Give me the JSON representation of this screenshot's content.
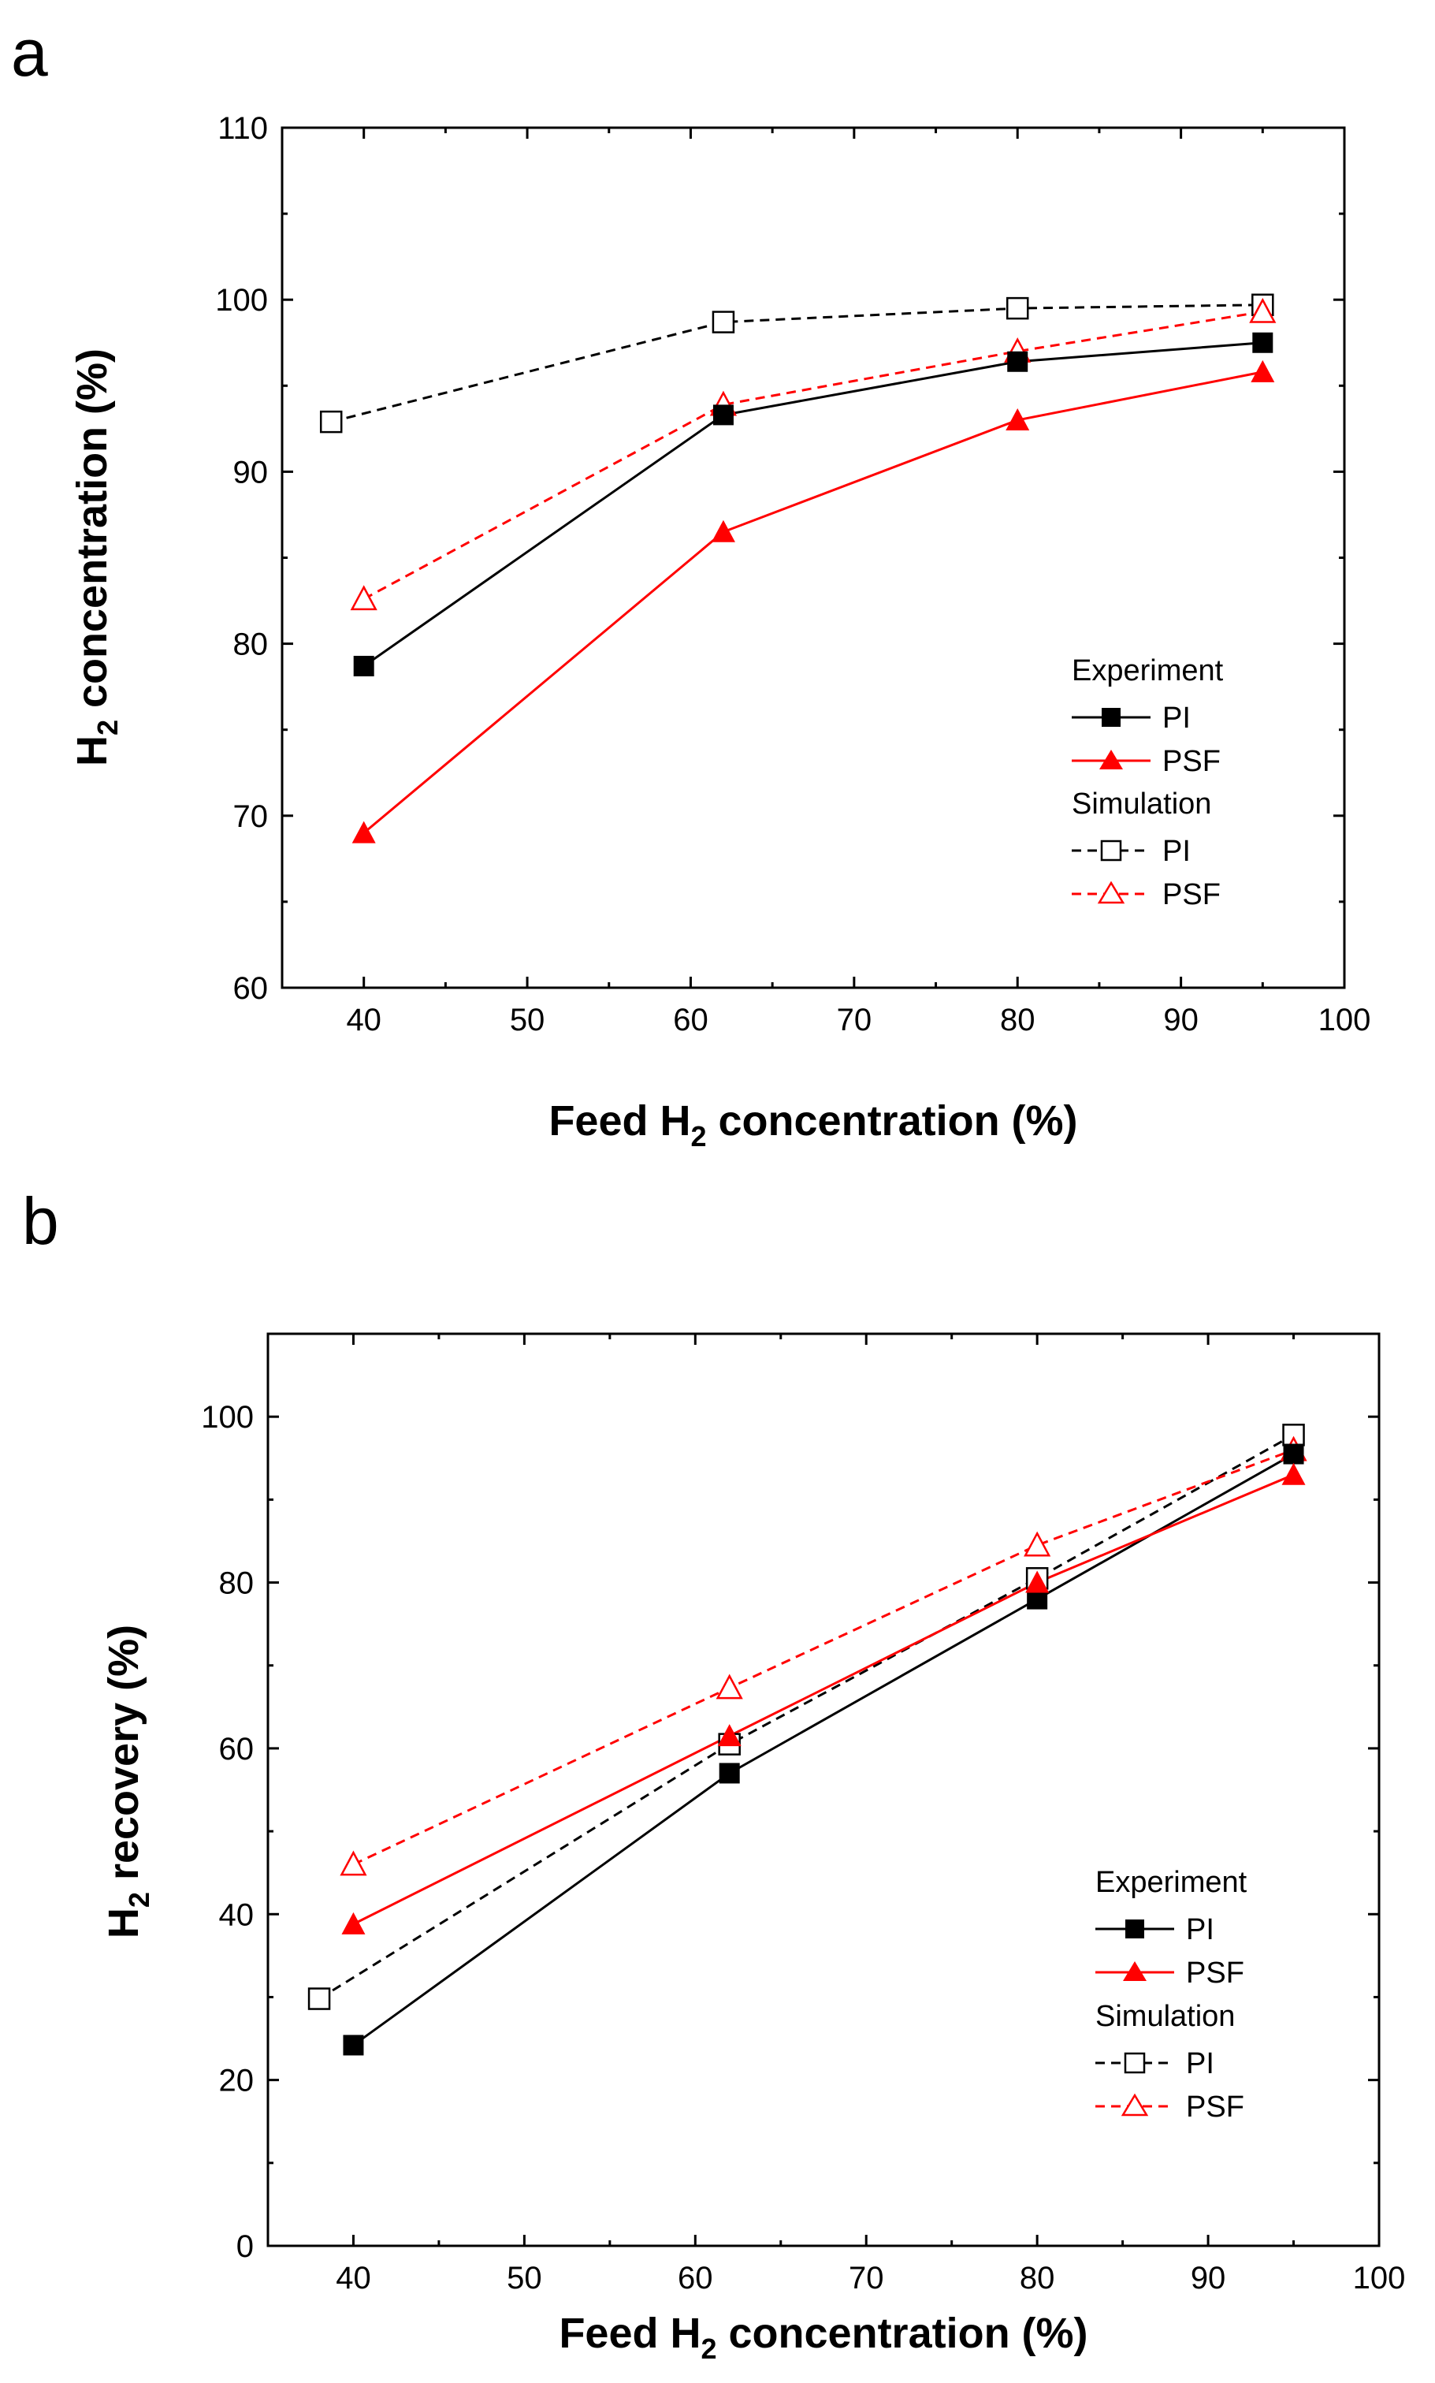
{
  "colors": {
    "pi": "#000000",
    "psf": "#ff0000"
  },
  "chart_data": [
    {
      "panel_label": "a",
      "type": "line",
      "xlabel_parts": [
        "Feed H",
        "2",
        " concentration (%)"
      ],
      "ylabel_parts": [
        "H",
        "2",
        " concentration (%)"
      ],
      "xlim": [
        35,
        100
      ],
      "ylim": [
        60,
        110
      ],
      "xticks": [
        40,
        50,
        60,
        70,
        80,
        90,
        100
      ],
      "yticks": [
        60,
        70,
        80,
        90,
        100,
        110
      ],
      "grid": false,
      "legend_position": "lower-right",
      "legend": {
        "experiment_header": "Experiment",
        "simulation_header": "Simulation",
        "experiment_pi": "PI",
        "experiment_psf": "PSF",
        "simulation_pi": "PI",
        "simulation_psf": "PSF"
      },
      "series": [
        {
          "name": "Experiment PI",
          "group": "Experiment",
          "label": "PI",
          "color": "#000000",
          "marker": "square-filled",
          "dashed": false,
          "x": [
            40,
            62,
            80,
            95
          ],
          "y": [
            78.7,
            93.3,
            96.4,
            97.5
          ]
        },
        {
          "name": "Experiment PSF",
          "group": "Experiment",
          "label": "PSF",
          "color": "#ff0000",
          "marker": "triangle-filled",
          "dashed": false,
          "x": [
            40,
            62,
            80,
            95
          ],
          "y": [
            69.0,
            86.5,
            93.0,
            95.8
          ]
        },
        {
          "name": "Simulation PI",
          "group": "Simulation",
          "label": "PI",
          "color": "#000000",
          "marker": "square-open",
          "dashed": true,
          "x": [
            38,
            62,
            80,
            95
          ],
          "y": [
            92.9,
            98.7,
            99.5,
            99.7
          ]
        },
        {
          "name": "Simulation PSF",
          "group": "Simulation",
          "label": "PSF",
          "color": "#ff0000",
          "marker": "triangle-open",
          "dashed": true,
          "x": [
            40,
            62,
            80,
            95
          ],
          "y": [
            82.6,
            93.9,
            97.0,
            99.3
          ]
        }
      ]
    },
    {
      "panel_label": "b",
      "type": "line",
      "xlabel_parts": [
        "Feed H",
        "2",
        " concentration (%)"
      ],
      "ylabel_parts": [
        "H",
        "2",
        " recovery (%)"
      ],
      "xlim": [
        35,
        100
      ],
      "ylim": [
        0,
        110
      ],
      "xticks": [
        40,
        50,
        60,
        70,
        80,
        90,
        100
      ],
      "yticks": [
        0,
        20,
        40,
        60,
        80,
        100
      ],
      "grid": false,
      "legend_position": "lower-right",
      "legend": {
        "experiment_header": "Experiment",
        "simulation_header": "Simulation",
        "experiment_pi": "PI",
        "experiment_psf": "PSF",
        "simulation_pi": "PI",
        "simulation_psf": "PSF"
      },
      "series": [
        {
          "name": "Experiment PI",
          "group": "Experiment",
          "label": "PI",
          "color": "#000000",
          "marker": "square-filled",
          "dashed": false,
          "x": [
            40,
            62,
            80,
            95
          ],
          "y": [
            24.2,
            57.0,
            78.0,
            95.5
          ]
        },
        {
          "name": "Experiment PSF",
          "group": "Experiment",
          "label": "PSF",
          "color": "#ff0000",
          "marker": "triangle-filled",
          "dashed": false,
          "x": [
            40,
            62,
            80,
            95
          ],
          "y": [
            38.8,
            61.5,
            80.0,
            93.0
          ]
        },
        {
          "name": "Simulation PI",
          "group": "Simulation",
          "label": "PI",
          "color": "#000000",
          "marker": "square-open",
          "dashed": true,
          "x": [
            38,
            62,
            80,
            95
          ],
          "y": [
            29.8,
            60.5,
            80.5,
            97.8
          ]
        },
        {
          "name": "Simulation PSF",
          "group": "Simulation",
          "label": "PSF",
          "color": "#ff0000",
          "marker": "triangle-open",
          "dashed": true,
          "x": [
            40,
            62,
            80,
            95
          ],
          "y": [
            46.0,
            67.3,
            84.5,
            96.0
          ]
        }
      ]
    }
  ]
}
